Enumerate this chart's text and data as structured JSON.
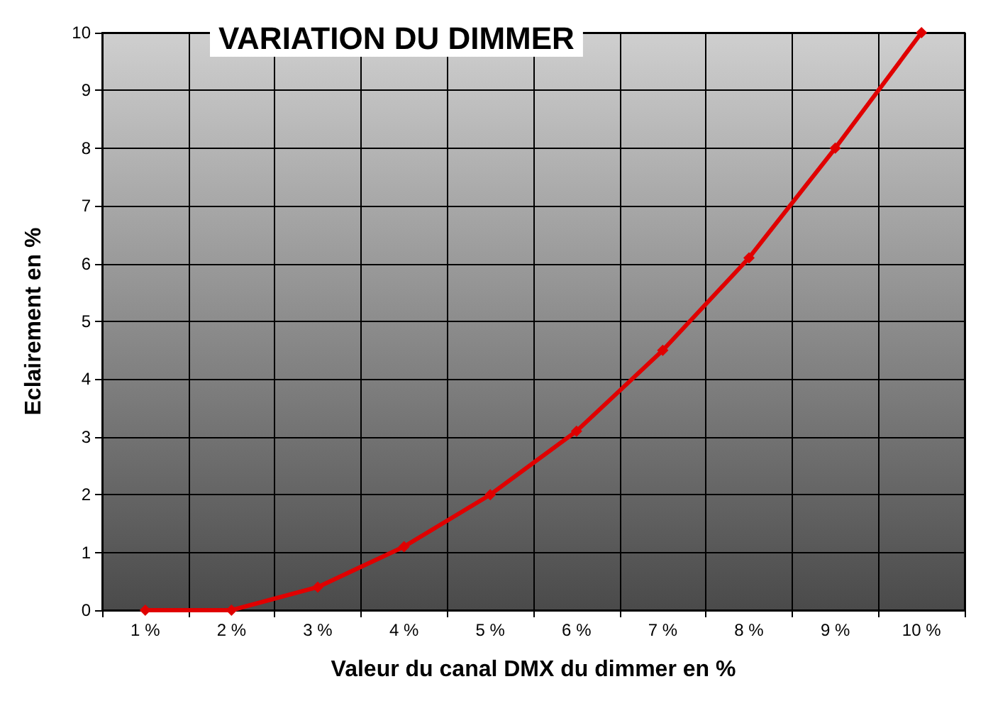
{
  "chart_data": {
    "type": "line",
    "title": "VARIATION DU DIMMER",
    "xlabel": "Valeur du canal DMX du dimmer en %",
    "ylabel": "Eclairement en %",
    "categories": [
      "1 %",
      "2 %",
      "3 %",
      "4 %",
      "5 %",
      "6 %",
      "7 %",
      "8 %",
      "9 %",
      "10 %"
    ],
    "series": [
      {
        "color": "#e00000",
        "values": [
          0,
          0,
          0.4,
          1.1,
          2.0,
          3.1,
          4.5,
          6.1,
          8.0,
          10
        ]
      }
    ],
    "ylim": [
      0,
      10
    ],
    "yticks": [
      0,
      1,
      2,
      3,
      4,
      5,
      6,
      7,
      8,
      9,
      10
    ],
    "grid": true,
    "marker": "diamond",
    "line_style": "solid"
  }
}
